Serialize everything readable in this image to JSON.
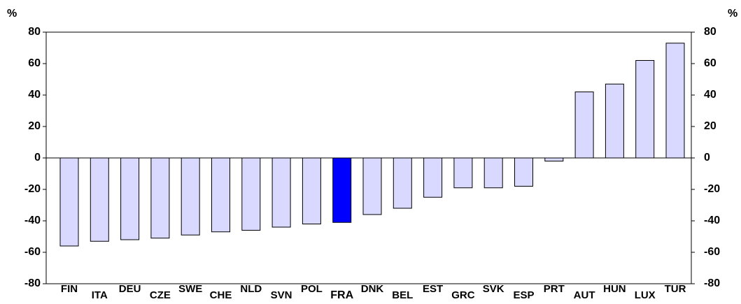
{
  "chart_data": {
    "type": "bar",
    "ylabel": "%",
    "y2label": "%",
    "categories": [
      "FIN",
      "ITA",
      "DEU",
      "CZE",
      "SWE",
      "CHE",
      "NLD",
      "SVN",
      "POL",
      "FRA",
      "DNK",
      "BEL",
      "EST",
      "GRC",
      "SVK",
      "ESP",
      "PRT",
      "AUT",
      "HUN",
      "LUX",
      "TUR"
    ],
    "values": [
      -56,
      -53,
      -52,
      -51,
      -49,
      -47,
      -46,
      -44,
      -42,
      -41,
      -36,
      -32,
      -25,
      -19,
      -19,
      -18,
      -2,
      42,
      47,
      62,
      73
    ],
    "colors": [
      "#d9d9ff",
      "#d9d9ff",
      "#d9d9ff",
      "#d9d9ff",
      "#d9d9ff",
      "#d9d9ff",
      "#d9d9ff",
      "#d9d9ff",
      "#d9d9ff",
      "#0000ff",
      "#d9d9ff",
      "#d9d9ff",
      "#d9d9ff",
      "#d9d9ff",
      "#d9d9ff",
      "#d9d9ff",
      "#d9d9ff",
      "#d9d9ff",
      "#d9d9ff",
      "#d9d9ff",
      "#d9d9ff"
    ],
    "ylim": [
      -80,
      80
    ],
    "yticks": [
      -80,
      -60,
      -40,
      -20,
      0,
      20,
      40,
      60,
      80
    ],
    "y2lim": [
      -80,
      80
    ],
    "y2ticks": [
      -80,
      -60,
      -40,
      -20,
      0,
      20,
      40,
      60,
      80
    ]
  }
}
